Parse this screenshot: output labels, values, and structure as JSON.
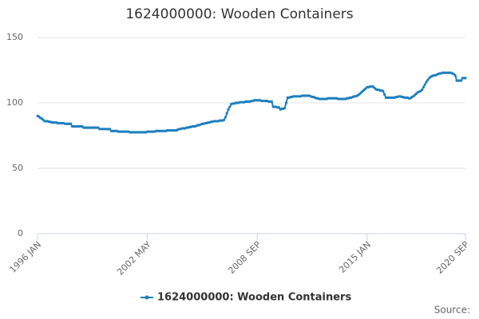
{
  "chart_data": {
    "type": "line",
    "title": "1624000000: Wooden Containers",
    "source": "Source:",
    "categories": [
      "1996 JAN",
      null,
      null,
      null,
      null,
      null,
      null,
      null,
      null,
      null,
      null,
      null,
      null,
      null,
      null,
      null,
      null,
      null,
      null,
      null,
      null,
      null,
      null,
      null,
      null,
      null,
      null,
      null,
      null,
      null,
      null,
      null,
      null,
      null,
      null,
      null,
      null,
      null,
      null,
      null,
      null,
      null,
      null,
      null,
      null,
      null,
      null,
      null,
      null,
      null,
      null,
      null,
      null,
      null,
      null,
      null,
      null,
      null,
      null,
      null,
      null,
      null,
      null,
      null,
      null,
      null,
      null,
      null,
      null,
      null,
      null,
      null,
      null,
      null,
      null,
      null,
      "2002 MAY",
      null,
      null,
      null,
      null,
      null,
      null,
      null,
      null,
      null,
      null,
      null,
      null,
      null,
      null,
      null,
      null,
      null,
      null,
      null,
      null,
      null,
      null,
      null,
      null,
      null,
      null,
      null,
      null,
      null,
      null,
      null,
      null,
      null,
      null,
      null,
      null,
      null,
      null,
      null,
      null,
      null,
      null,
      null,
      null,
      null,
      null,
      null,
      null,
      null,
      null,
      null,
      null,
      null,
      null,
      null,
      null,
      null,
      null,
      null,
      null,
      null,
      null,
      null,
      null,
      null,
      null,
      null,
      null,
      null,
      null,
      null,
      null,
      null,
      null,
      null,
      "2008 SEP",
      null,
      null,
      null,
      null,
      null,
      null,
      null,
      null,
      null,
      null,
      null,
      null,
      null,
      null,
      null,
      null,
      null,
      null,
      null,
      null,
      null,
      null,
      null,
      null,
      null,
      null,
      null,
      null,
      null,
      null,
      null,
      null,
      null,
      null,
      null,
      null,
      null,
      null,
      null,
      null,
      null,
      null,
      null,
      null,
      null,
      null,
      null,
      null,
      null,
      null,
      null,
      null,
      null,
      null,
      null,
      null,
      null,
      null,
      null,
      null,
      null,
      null,
      null,
      null,
      null,
      null,
      null,
      null,
      null,
      null,
      null,
      null,
      null,
      null,
      null,
      "2015 JAN",
      null,
      null,
      null,
      null,
      null,
      null,
      null,
      null,
      null,
      null,
      null,
      null,
      null,
      null,
      null,
      null,
      null,
      null,
      null,
      null,
      null,
      null,
      null,
      null,
      null,
      null,
      null,
      null,
      null,
      null,
      null,
      null,
      null,
      null,
      null,
      null,
      null,
      null,
      null,
      null,
      null,
      null,
      null,
      null,
      null,
      null,
      null,
      null,
      null,
      null,
      null,
      null,
      null,
      null,
      null,
      null,
      null,
      null,
      null,
      null,
      null,
      null,
      null,
      null,
      null,
      null,
      null,
      "2020 SEP"
    ],
    "series": [
      {
        "name": "1624000000: Wooden Containers",
        "color": "#1f7fbf",
        "values": [
          90,
          89.5,
          88.5,
          88,
          87,
          86,
          86,
          86,
          85.5,
          85.5,
          85,
          85,
          85,
          85,
          84.5,
          84.5,
          84.5,
          84.5,
          84.5,
          84,
          84,
          84,
          84,
          84,
          82,
          82,
          82,
          82,
          82,
          82,
          82,
          82,
          81,
          81,
          81,
          81,
          81,
          81,
          81,
          81,
          81,
          81,
          81,
          80,
          80,
          80,
          80,
          80,
          80,
          80,
          80,
          78.5,
          78.5,
          78.5,
          78.5,
          78.5,
          78,
          78,
          78,
          78,
          78,
          78,
          78,
          78,
          77.5,
          77.5,
          77.5,
          77.5,
          77.5,
          77.5,
          77.5,
          77.5,
          77.5,
          77.5,
          77.5,
          77.5,
          78,
          78,
          78,
          78,
          78,
          78,
          78.5,
          78.5,
          78.5,
          78.5,
          78.5,
          78.5,
          78.5,
          78.5,
          79,
          79,
          79,
          79,
          79,
          79,
          79,
          79.5,
          80,
          80,
          80.5,
          80.5,
          80.5,
          81,
          81,
          81.5,
          81.5,
          82,
          82,
          82,
          82.5,
          83,
          83,
          83.5,
          84,
          84,
          84.5,
          84.5,
          85,
          85,
          85.5,
          85.5,
          86,
          86,
          86,
          86,
          86.5,
          86.5,
          86.5,
          87,
          89,
          92,
          95,
          97,
          99,
          99.5,
          99.5,
          100,
          100,
          100,
          100.5,
          100.5,
          100.5,
          100.5,
          101,
          101,
          101,
          101,
          101.5,
          101.5,
          102,
          102,
          102,
          102,
          102,
          101.5,
          101.5,
          101.5,
          101.5,
          101.5,
          101,
          101,
          101,
          97,
          97,
          97,
          96.5,
          96.5,
          95,
          95.5,
          95.5,
          96,
          100,
          104,
          104,
          104.5,
          104.5,
          105,
          105,
          105,
          105,
          105,
          105,
          105.5,
          105.5,
          105.5,
          105.5,
          105.5,
          105.5,
          105,
          104.5,
          104.5,
          104,
          103.5,
          103.5,
          103,
          103,
          103,
          103,
          103,
          103,
          103.5,
          103.5,
          103.5,
          103.5,
          103.5,
          103.5,
          103.5,
          103,
          103,
          103,
          103,
          103,
          103,
          103.5,
          103.5,
          104,
          104,
          104.5,
          105,
          105,
          105.5,
          106,
          107,
          108,
          109,
          110,
          111,
          112,
          112,
          112.5,
          112.5,
          112.5,
          111.5,
          110.5,
          110,
          110,
          109.5,
          109.5,
          109,
          106.5,
          104,
          104,
          104,
          104,
          104,
          104,
          104,
          104.5,
          104.5,
          105,
          105,
          104.5,
          104.5,
          104,
          104,
          104,
          103.5,
          103.5,
          104.5,
          105,
          106,
          107,
          108,
          108.5,
          109,
          110,
          112,
          114,
          116,
          117.5,
          119,
          120,
          120.5,
          121,
          121,
          121.5,
          122,
          122.5,
          122.5,
          123,
          123,
          123,
          123,
          123,
          123,
          123,
          122.5,
          122,
          121,
          117,
          117,
          117,
          117,
          119,
          119,
          119
        ]
      }
    ],
    "ylim": [
      0,
      150
    ],
    "yticks": [
      0,
      50,
      100,
      150
    ],
    "grid": true,
    "legend": "bottom"
  }
}
